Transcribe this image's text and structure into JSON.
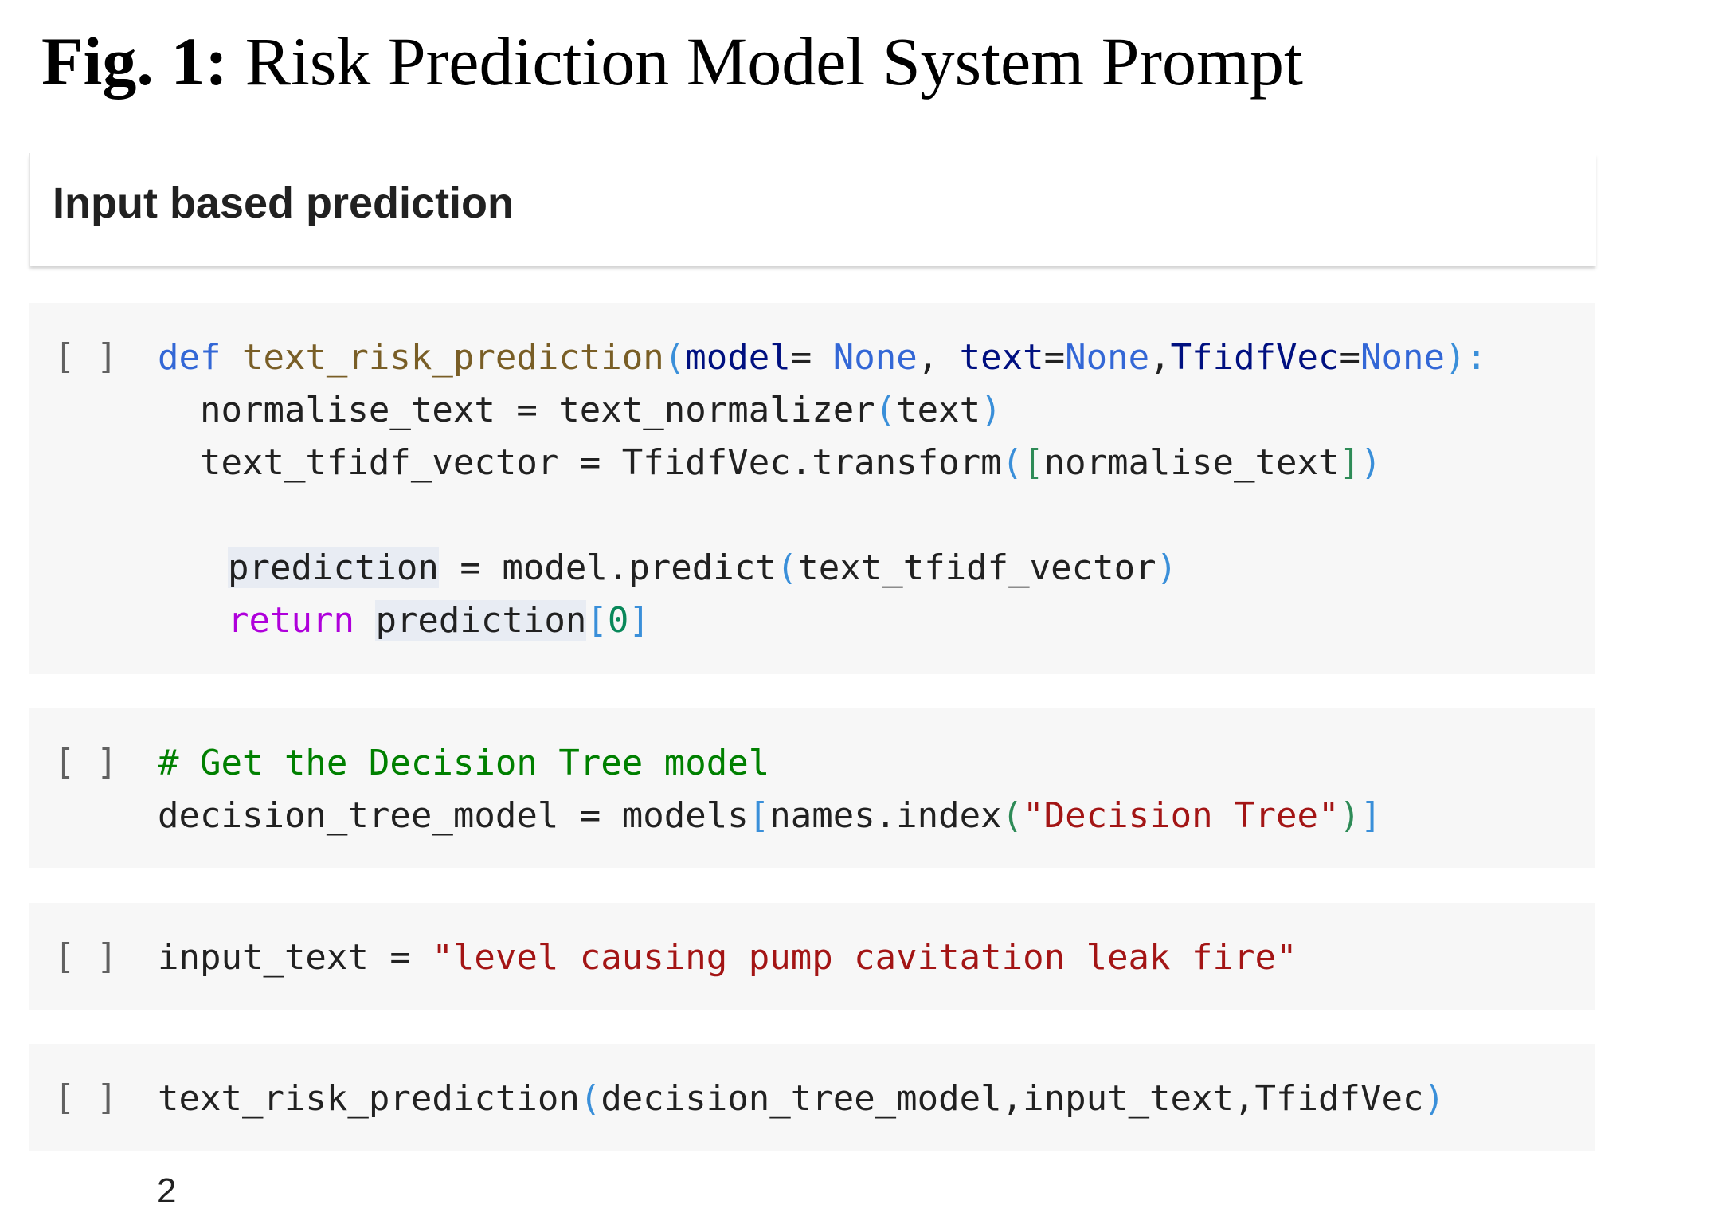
{
  "figure": {
    "label": "Fig. 1:",
    "title": " Risk Prediction Model System Prompt"
  },
  "markdown_cell": {
    "heading": "Input based prediction"
  },
  "run_indicator": "[ ]",
  "cell1": {
    "l1_def": "def",
    "l1_fn": " text_risk_prediction",
    "l1_open": "(",
    "l1_p1": "model",
    "l1_eq1": "= ",
    "l1_none1": "None",
    "l1_sep1": ", ",
    "l1_p2": "text",
    "l1_eq2": "=",
    "l1_none2": "None",
    "l1_sep2": ",",
    "l1_p3": "TfidfVec",
    "l1_eq3": "=",
    "l1_none3": "None",
    "l1_close": "):",
    "l2_a": "  normalise_text = text_normalizer",
    "l2_open": "(",
    "l2_arg": "text",
    "l2_close": ")",
    "l3_a": "  text_tfidf_vector = TfidfVec.transform",
    "l3_open": "(",
    "l3_lb": "[",
    "l3_arg": "normalise_text",
    "l3_rb": "]",
    "l3_close": ")",
    "l5_pred": "prediction",
    "l5_b": " = model.predict",
    "l5_open": "(",
    "l5_arg": "text_tfidf_vector",
    "l5_close": ")",
    "l6_ret": "return",
    "l6_pred": "prediction",
    "l6_lb": "[",
    "l6_idx": "0",
    "l6_rb": "]"
  },
  "cell2": {
    "comment": "# Get the Decision Tree model",
    "l2_a": "decision_tree_model = models",
    "l2_lb": "[",
    "l2_b": "names.index",
    "l2_open": "(",
    "l2_str": "\"Decision Tree\"",
    "l2_close": ")",
    "l2_rb": "]"
  },
  "cell3": {
    "a": "input_text = ",
    "str": "\"level causing pump cavitation leak fire\""
  },
  "cell4": {
    "a": "text_risk_prediction",
    "open": "(",
    "args": "decision_tree_model,input_text,TfidfVec",
    "close": ")"
  },
  "output": {
    "value": "2"
  },
  "colors": {
    "keyword": "#3367d6",
    "comment": "#008000",
    "string": "#a31515",
    "return_keyword": "#af00db",
    "cell_background": "#f7f7f7"
  }
}
